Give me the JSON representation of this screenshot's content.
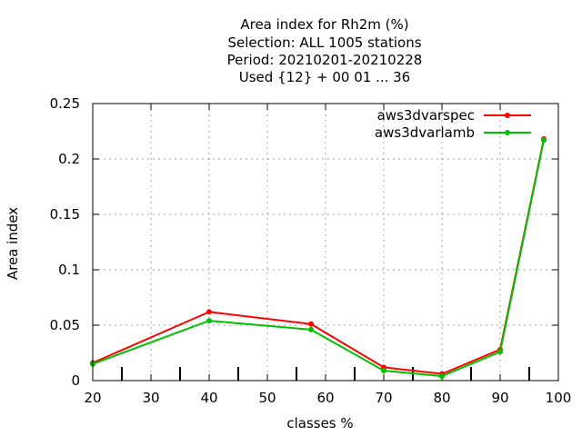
{
  "chart_data": {
    "type": "line",
    "title_lines": [
      "Area index  for Rh2m (%)",
      "Selection: ALL   1005 stations",
      "Period: 20210201-20210228",
      "Used {12} + 00 01 ... 36"
    ],
    "xlabel": "classes %",
    "ylabel": "Area index",
    "xlim": [
      20,
      100
    ],
    "ylim": [
      0,
      0.25
    ],
    "xticks": [
      "20",
      "30",
      "40",
      "50",
      "60",
      "70",
      "80",
      "90",
      "100"
    ],
    "yticks": [
      "0",
      "0.05",
      "0.1",
      "0.15",
      "0.2",
      "0.25"
    ],
    "grid": true,
    "legend_position": "top-right",
    "series": [
      {
        "name": "aws3dvarspec",
        "color": "#ff0000",
        "x": [
          20,
          40,
          57.5,
          70,
          80,
          90,
          97.5
        ],
        "y": [
          0.016,
          0.062,
          0.051,
          0.012,
          0.006,
          0.028,
          0.218
        ]
      },
      {
        "name": "aws3dvarlamb",
        "color": "#00c000",
        "x": [
          20,
          40,
          57.5,
          70,
          80,
          90,
          97.5
        ],
        "y": [
          0.015,
          0.054,
          0.046,
          0.009,
          0.004,
          0.026,
          0.217
        ]
      }
    ],
    "minor_bold_ticks_x": [
      25,
      35,
      45,
      55,
      65,
      75,
      85,
      95
    ]
  }
}
